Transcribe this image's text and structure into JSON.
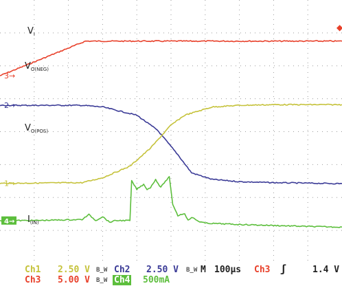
{
  "chart_data": {
    "type": "line",
    "instrument": "oscilloscope",
    "x_unit": "µs",
    "x_per_div": 100,
    "x_range_us": [
      0,
      1000
    ],
    "grid": true,
    "grid_divisions": {
      "x": 10,
      "y": 8
    },
    "series": [
      {
        "id": "ch3",
        "name": "V_I",
        "color": "#e8402a",
        "marker": "3",
        "scale": "5.00 V/div",
        "x_us": [
          0,
          60,
          250,
          300,
          1000
        ],
        "y_div": [
          5.7,
          5.95,
          6.75,
          6.75,
          6.75
        ]
      },
      {
        "id": "ch2",
        "name": "V_O(NEG)",
        "color": "#3a3a96",
        "marker": "2",
        "scale": "2.50 V/div",
        "x_us": [
          0,
          240,
          300,
          400,
          460,
          520,
          560,
          620,
          700,
          800,
          1000
        ],
        "y_div": [
          4.8,
          4.8,
          4.75,
          4.5,
          4.05,
          3.3,
          2.75,
          2.55,
          2.48,
          2.45,
          2.42
        ]
      },
      {
        "id": "ch1",
        "name": "V_O(POS)",
        "color": "#c5c23a",
        "marker": "1",
        "scale": "2.50 V/div",
        "x_us": [
          0,
          240,
          300,
          380,
          440,
          500,
          540,
          620,
          700,
          800,
          1000
        ],
        "y_div": [
          2.43,
          2.45,
          2.6,
          2.95,
          3.5,
          4.2,
          4.5,
          4.75,
          4.8,
          4.82,
          4.82
        ]
      },
      {
        "id": "ch4",
        "name": "I_(IN)",
        "color": "#5cbe3c",
        "marker": "4",
        "scale": "500mA/div",
        "x_us": [
          0,
          100,
          240,
          260,
          280,
          300,
          320,
          340,
          380,
          385,
          400,
          420,
          430,
          440,
          455,
          470,
          480,
          495,
          505,
          520,
          540,
          550,
          560,
          580,
          600,
          700,
          800,
          900,
          1000
        ],
        "y_div": [
          1.3,
          1.3,
          1.33,
          1.48,
          1.3,
          1.42,
          1.25,
          1.3,
          1.3,
          2.5,
          2.25,
          2.4,
          2.25,
          2.3,
          2.55,
          2.3,
          2.45,
          2.62,
          1.8,
          1.45,
          1.52,
          1.3,
          1.4,
          1.28,
          1.22,
          1.18,
          1.15,
          1.12,
          1.1
        ]
      }
    ],
    "labels": [
      {
        "series": "ch3",
        "base": "V",
        "sub": "I"
      },
      {
        "series": "ch2",
        "base": "V",
        "sub": "O(NEG)"
      },
      {
        "series": "ch1",
        "base": "V",
        "sub": "O(POS)"
      },
      {
        "series": "ch4",
        "base": "I",
        "sub": "(IN)"
      }
    ],
    "trigger_marker": "◆"
  },
  "status": {
    "ch1_label": "Ch1",
    "ch1_scale": "2.50 V",
    "ch2_label": "Ch2",
    "ch2_scale": "2.50 V",
    "bw1": "B_W",
    "bw2": "B_W",
    "bw3": "B_W",
    "timebase_label": "M",
    "timebase_value": "100µs",
    "trig_source": "Ch3",
    "trig_slope": "ʃ",
    "trig_level": "1.4 V",
    "ch3_label": "Ch3",
    "ch3_scale": "5.00 V",
    "ch4_label": "Ch4",
    "ch4_scale": "500mA"
  }
}
